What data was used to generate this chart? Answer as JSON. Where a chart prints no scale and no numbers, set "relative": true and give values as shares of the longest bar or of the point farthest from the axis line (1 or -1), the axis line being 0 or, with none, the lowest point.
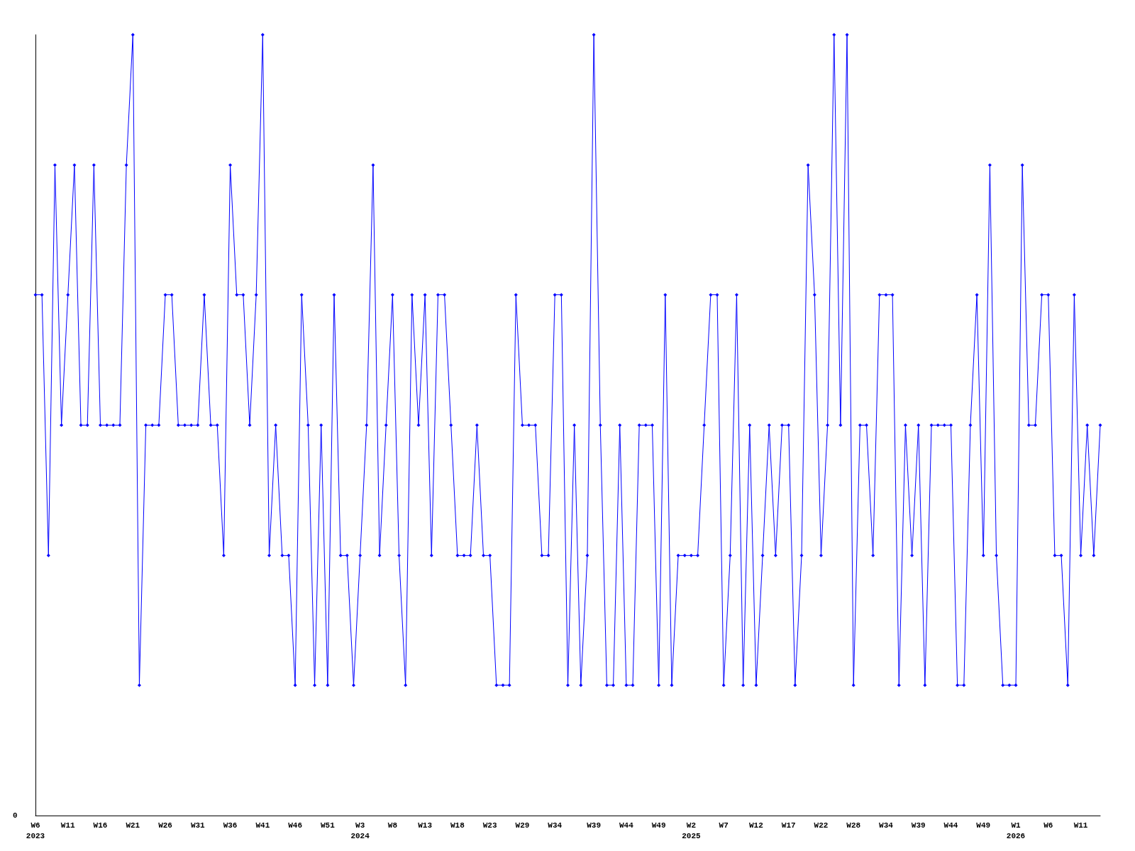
{
  "chart_data": {
    "type": "line",
    "relative": true,
    "marker": "diamond",
    "line_style": "solid",
    "grid": false,
    "annotations": [
      "0"
    ],
    "categories": [
      "W6\n2023",
      null,
      null,
      null,
      null,
      "W11",
      null,
      null,
      null,
      null,
      "W16",
      null,
      null,
      null,
      null,
      "W21",
      null,
      null,
      null,
      null,
      "W26",
      null,
      null,
      null,
      null,
      "W31",
      null,
      null,
      null,
      null,
      "W36",
      null,
      null,
      null,
      null,
      "W41",
      null,
      null,
      null,
      null,
      "W46",
      null,
      null,
      null,
      null,
      "W51",
      null,
      null,
      null,
      null,
      "W3\n2024",
      null,
      null,
      null,
      null,
      "W8",
      null,
      null,
      null,
      null,
      "W13",
      null,
      null,
      null,
      null,
      "W18",
      null,
      null,
      null,
      null,
      "W23",
      null,
      null,
      null,
      null,
      "W29",
      null,
      null,
      null,
      null,
      "W34",
      null,
      null,
      null,
      null,
      null,
      "W39",
      null,
      null,
      null,
      null,
      "W44",
      null,
      null,
      null,
      null,
      "W49",
      null,
      null,
      null,
      null,
      "W2\n2025",
      null,
      null,
      null,
      null,
      "W7",
      null,
      null,
      null,
      null,
      "W12",
      null,
      null,
      null,
      null,
      "W17",
      null,
      null,
      null,
      null,
      "W22",
      null,
      null,
      null,
      null,
      "W28",
      null,
      null,
      null,
      null,
      "W34",
      null,
      null,
      null,
      null,
      "W39",
      null,
      null,
      null,
      null,
      "W44",
      null,
      null,
      null,
      null,
      "W49",
      null,
      null,
      null,
      null,
      "W1\n2026",
      null,
      null,
      null,
      null,
      "W6",
      null,
      null,
      null,
      null,
      "W11",
      null,
      null,
      null
    ],
    "series": [
      {
        "color": "#0000ff",
        "values": [
          0.667,
          0.667,
          0.333,
          0.833,
          0.5,
          0.667,
          0.833,
          0.5,
          0.5,
          0.833,
          0.5,
          0.5,
          0.5,
          0.5,
          0.833,
          1,
          0.167,
          0.5,
          0.5,
          0.5,
          0.667,
          0.667,
          0.5,
          0.5,
          0.5,
          0.5,
          0.667,
          0.5,
          0.5,
          0.333,
          0.833,
          0.667,
          0.667,
          0.5,
          0.667,
          1,
          0.333,
          0.5,
          0.333,
          0.333,
          0.167,
          0.667,
          0.5,
          0.167,
          0.5,
          0.167,
          0.667,
          0.333,
          0.333,
          0.167,
          0.333,
          0.5,
          0.833,
          0.333,
          0.5,
          0.667,
          0.333,
          0.167,
          0.667,
          0.5,
          0.667,
          0.333,
          0.667,
          0.667,
          0.5,
          0.333,
          0.333,
          0.333,
          0.5,
          0.333,
          0.333,
          0.167,
          0.167,
          0.167,
          0.667,
          0.5,
          0.5,
          0.5,
          0.333,
          0.333,
          0.667,
          0.667,
          0.167,
          0.5,
          0.167,
          0.333,
          1,
          0.5,
          0.167,
          0.167,
          0.5,
          0.167,
          0.167,
          0.5,
          0.5,
          0.5,
          0.167,
          0.667,
          0.167,
          0.333,
          0.333,
          0.333,
          0.333,
          0.5,
          0.667,
          0.667,
          0.167,
          0.333,
          0.667,
          0.167,
          0.5,
          0.167,
          0.333,
          0.5,
          0.333,
          0.5,
          0.5,
          0.167,
          0.333,
          0.833,
          0.667,
          0.333,
          0.5,
          1,
          0.5,
          1,
          0.167,
          0.5,
          0.5,
          0.333,
          0.667,
          0.667,
          0.667,
          0.167,
          0.5,
          0.333,
          0.5,
          0.167,
          0.5,
          0.5,
          0.5,
          0.5,
          0.167,
          0.167,
          0.5,
          0.667,
          0.333,
          0.833,
          0.333,
          0.167,
          0.167,
          0.167,
          0.833,
          0.5,
          0.5,
          0.667,
          0.667,
          0.333,
          0.333,
          0.167,
          0.667,
          0.333,
          0.5,
          0.333,
          0.5
        ]
      }
    ]
  }
}
